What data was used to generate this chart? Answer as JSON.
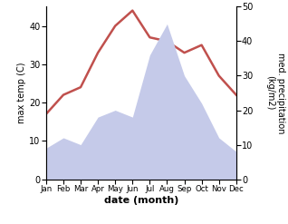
{
  "months": [
    "Jan",
    "Feb",
    "Mar",
    "Apr",
    "May",
    "Jun",
    "Jul",
    "Aug",
    "Sep",
    "Oct",
    "Nov",
    "Dec"
  ],
  "temperature": [
    17,
    22,
    24,
    33,
    40,
    44,
    37,
    36,
    33,
    35,
    27,
    22
  ],
  "precipitation": [
    9,
    12,
    10,
    18,
    20,
    18,
    36,
    45,
    30,
    22,
    12,
    8
  ],
  "temp_color": "#c0504d",
  "precip_fill_color": "#c5cae9",
  "xlabel": "date (month)",
  "ylabel_left": "max temp (C)",
  "ylabel_right": "med. precipitation\n(kg/m2)",
  "ylim_left": [
    0,
    45
  ],
  "ylim_right": [
    0,
    50
  ],
  "yticks_left": [
    0,
    10,
    20,
    30,
    40
  ],
  "yticks_right": [
    0,
    10,
    20,
    30,
    40,
    50
  ],
  "background_color": "#ffffff"
}
